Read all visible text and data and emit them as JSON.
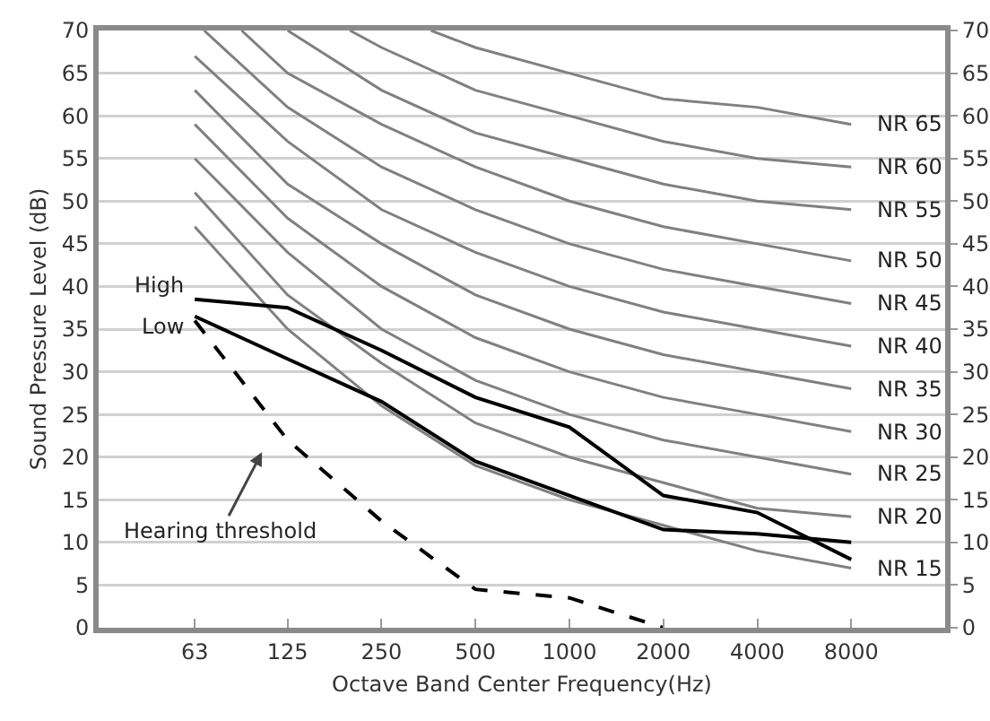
{
  "chart_data": {
    "type": "line",
    "xlabel": "Octave Band Center Frequency(Hz)",
    "ylabel": "Sound Pressure Level (dB)",
    "x": [
      63,
      125,
      250,
      500,
      1000,
      2000,
      4000,
      8000
    ],
    "log": "x",
    "xlim": [
      31,
      16000
    ],
    "xticks": [
      63,
      125,
      250,
      500,
      1000,
      2000,
      4000,
      8000
    ],
    "ylim": [
      0,
      70
    ],
    "yticks": [
      0,
      5,
      10,
      15,
      20,
      25,
      30,
      35,
      40,
      45,
      50,
      55,
      60,
      65,
      70
    ],
    "y2lim": [
      0,
      70
    ],
    "y2ticks": [
      0,
      5,
      10,
      15,
      20,
      25,
      30,
      35,
      40,
      45,
      50,
      55,
      60,
      65,
      70
    ],
    "grid": "y",
    "legend": false,
    "marker": "none",
    "series": [
      {
        "name": "NR 65",
        "color": "#808080",
        "x": [
          360,
          500,
          1000,
          2000,
          4000,
          8000
        ],
        "values": [
          70,
          68,
          65,
          62,
          61,
          59
        ]
      },
      {
        "name": "NR 60",
        "color": "#808080",
        "x": [
          198,
          250,
          500,
          1000,
          2000,
          4000,
          8000
        ],
        "values": [
          70,
          68,
          63,
          60,
          57,
          55,
          54
        ]
      },
      {
        "name": "NR 55",
        "color": "#808080",
        "x": [
          125,
          250,
          500,
          1000,
          2000,
          4000,
          8000
        ],
        "values": [
          70,
          63,
          58,
          55,
          52,
          50,
          49
        ]
      },
      {
        "name": "NR 50",
        "color": "#808080",
        "x": [
          89,
          125,
          250,
          500,
          1000,
          2000,
          4000,
          8000
        ],
        "values": [
          70,
          65,
          59,
          54,
          50,
          47,
          45,
          43
        ]
      },
      {
        "name": "NR 45",
        "color": "#808080",
        "x": [
          67.5,
          125,
          250,
          500,
          1000,
          2000,
          4000,
          8000
        ],
        "values": [
          70,
          61,
          54,
          49,
          45,
          42,
          40,
          38
        ]
      },
      {
        "name": "NR 40",
        "color": "#808080",
        "values": [
          67,
          57,
          49,
          44,
          40,
          37,
          35,
          33
        ]
      },
      {
        "name": "NR 35",
        "color": "#808080",
        "values": [
          63,
          52,
          45,
          39,
          35,
          32,
          30,
          28
        ]
      },
      {
        "name": "NR 30",
        "color": "#808080",
        "values": [
          59,
          48,
          40,
          34,
          30,
          27,
          25,
          23
        ]
      },
      {
        "name": "NR 25",
        "color": "#808080",
        "values": [
          55,
          44,
          35,
          29,
          25,
          22,
          20,
          18
        ]
      },
      {
        "name": "NR 20",
        "color": "#808080",
        "values": [
          51,
          39,
          31,
          24,
          20,
          17,
          14,
          13
        ]
      },
      {
        "name": "NR 15",
        "color": "#808080",
        "values": [
          47,
          35,
          26,
          19,
          15,
          12,
          9,
          7
        ]
      },
      {
        "name": "High",
        "color": "#000000",
        "values": [
          38.5,
          37.5,
          32.5,
          27,
          23.5,
          15.5,
          13.5,
          8
        ]
      },
      {
        "name": "Low",
        "color": "#000000",
        "values": [
          36.5,
          31.5,
          26.5,
          19.5,
          15.5,
          11.5,
          11,
          10
        ]
      },
      {
        "color": "#000000",
        "line_style": "dashed",
        "x": [
          63,
          125,
          250,
          500,
          1000,
          2000
        ],
        "values": [
          36,
          22,
          12.5,
          4.5,
          3.5,
          0
        ]
      }
    ],
    "annotations": [
      "Hearing threshold"
    ]
  }
}
